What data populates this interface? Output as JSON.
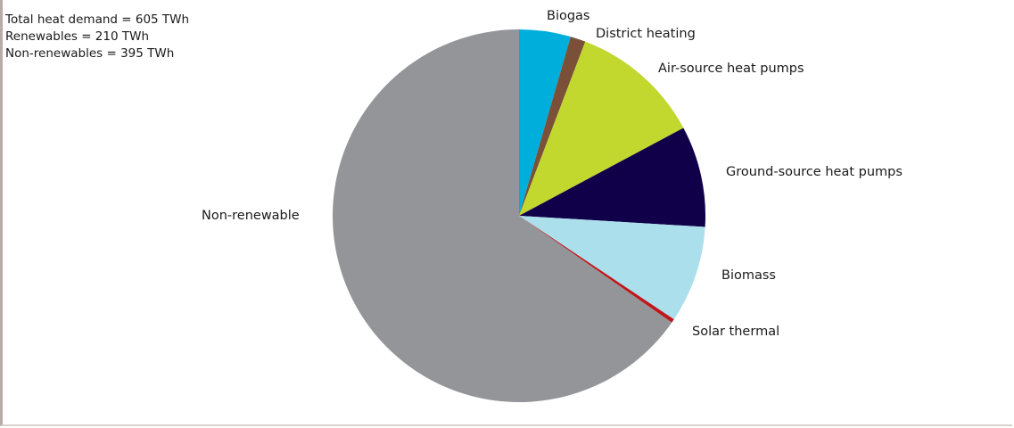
{
  "summary": {
    "total": "Total heat demand = 605 TWh",
    "renewables": "Renewables = 210 TWh",
    "non_renewables": "Non-renewables = 395 TWh"
  },
  "chart_data": {
    "type": "pie",
    "unit": "TWh",
    "start_angle_deg": 0,
    "direction": "clockwise",
    "slices": [
      {
        "label": "Biogas",
        "value": 27,
        "color": "#00aedb"
      },
      {
        "label": "District heating",
        "value": 8,
        "color": "#7a5138"
      },
      {
        "label": "Air-source heat pumps",
        "value": 69,
        "color": "#c2d82e"
      },
      {
        "label": "Ground-source heat pumps",
        "value": 53,
        "color": "#10004a"
      },
      {
        "label": "Biomass",
        "value": 51,
        "color": "#abdfeb"
      },
      {
        "label": "Solar thermal",
        "value": 2,
        "color": "#c0161c"
      },
      {
        "label": "Non-renewable",
        "value": 395,
        "color": "#939598"
      }
    ]
  }
}
